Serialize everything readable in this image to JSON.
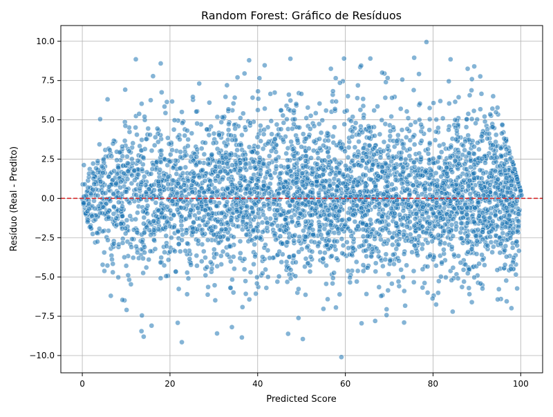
{
  "chart_data": {
    "type": "scatter",
    "title": "Random Forest: Gráfico de Resíduos",
    "xlabel": "Predicted Score",
    "ylabel": "Resíduo (Real - Predito)",
    "xlim": [
      -4.9,
      105
    ],
    "ylim": [
      -11.1,
      11.0
    ],
    "x_ticks": [
      0,
      20,
      40,
      60,
      80,
      100
    ],
    "x_tick_labels": [
      "0",
      "20",
      "40",
      "60",
      "80",
      "100"
    ],
    "y_ticks": [
      -10.0,
      -7.5,
      -5.0,
      -2.5,
      0.0,
      2.5,
      5.0,
      7.5,
      10.0
    ],
    "y_tick_labels": [
      "−10.0",
      "−7.5",
      "−5.0",
      "−2.5",
      "0.0",
      "2.5",
      "5.0",
      "7.5",
      "10.0"
    ],
    "grid": true,
    "reference_line": {
      "y": 0,
      "style": "dashed",
      "color": "#d62728"
    },
    "marker_color": "#1f77b4",
    "marker_edge_color": "#ffffff",
    "marker_alpha": 0.55,
    "highlighted_points": [
      {
        "x": 78.5,
        "y": 9.95
      },
      {
        "x": 75.7,
        "y": 8.95
      },
      {
        "x": 65.7,
        "y": 8.9
      },
      {
        "x": 59.7,
        "y": 8.9
      },
      {
        "x": 84.0,
        "y": 8.85
      },
      {
        "x": 89.4,
        "y": 8.4
      },
      {
        "x": 63.6,
        "y": 8.45
      },
      {
        "x": 56.7,
        "y": 8.25
      },
      {
        "x": 87.9,
        "y": 8.25
      },
      {
        "x": 68.4,
        "y": 8.0
      },
      {
        "x": 37.0,
        "y": 7.95
      },
      {
        "x": 35.4,
        "y": 7.7
      },
      {
        "x": 40.4,
        "y": 7.65
      },
      {
        "x": 57.8,
        "y": 7.65
      },
      {
        "x": 33.0,
        "y": 7.2
      },
      {
        "x": 18.1,
        "y": 6.75
      },
      {
        "x": 15.6,
        "y": 6.25
      },
      {
        "x": 14.2,
        "y": 5.2
      },
      {
        "x": 22.7,
        "y": 5.5
      },
      {
        "x": 9.1,
        "y": 3.3
      },
      {
        "x": 2.7,
        "y": 0.9
      },
      {
        "x": 1.2,
        "y": -1.5
      },
      {
        "x": 0.3,
        "y": -0.3
      },
      {
        "x": 6.5,
        "y": -6.2
      },
      {
        "x": 10.1,
        "y": -7.1
      },
      {
        "x": 13.6,
        "y": -7.45
      },
      {
        "x": 13.5,
        "y": -8.45
      },
      {
        "x": 14.0,
        "y": -8.8
      },
      {
        "x": 15.8,
        "y": -8.1
      },
      {
        "x": 22.7,
        "y": -9.15
      },
      {
        "x": 36.4,
        "y": -8.85
      },
      {
        "x": 50.3,
        "y": -8.95
      },
      {
        "x": 59.1,
        "y": -10.1
      },
      {
        "x": 63.7,
        "y": -7.95
      },
      {
        "x": 66.8,
        "y": -7.8
      },
      {
        "x": 73.4,
        "y": -7.9
      },
      {
        "x": 96.8,
        "y": -6.55
      },
      {
        "x": 98.9,
        "y": -4.85
      },
      {
        "x": 99.6,
        "y": 0.1
      },
      {
        "x": 100.2,
        "y": 0.2
      }
    ],
    "bulk_cloud_description_note": ""
  }
}
